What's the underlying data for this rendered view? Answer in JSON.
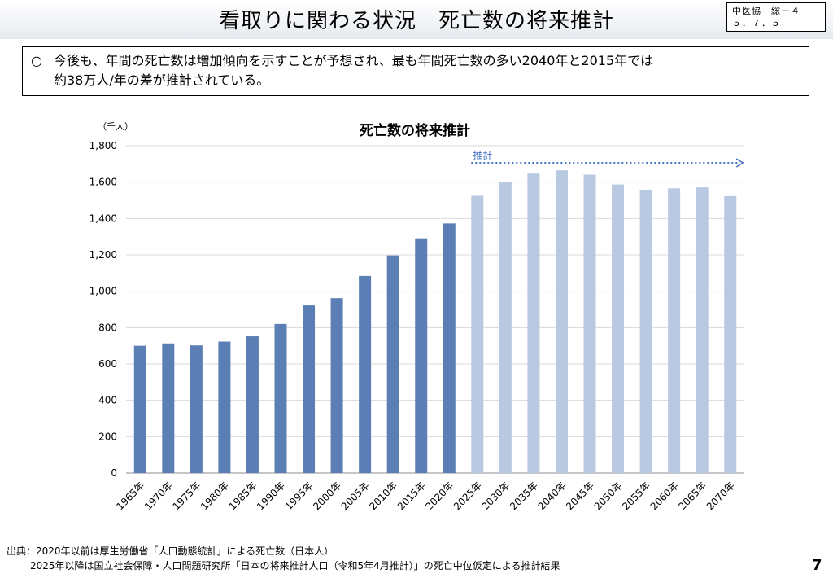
{
  "header": {
    "title": "看取りに関わる状況　死亡数の将来推計",
    "meeting_ref_line1": "中医協　総－４",
    "meeting_ref_line2": "５．７．５"
  },
  "summary": {
    "bullet": "○",
    "line1": "今後も、年間の死亡数は増加傾向を示すことが予想され、最も年間死亡数の多い2040年と2015年では",
    "line2": "約38万人/年の差が推計されている。"
  },
  "chart_data": {
    "type": "bar",
    "title": "死亡数の将来推計",
    "ylabel": "（千人）",
    "xlabel": "",
    "ylim": [
      0,
      1800
    ],
    "yticks": [
      0,
      200,
      400,
      600,
      800,
      1000,
      1200,
      1400,
      1600,
      1800
    ],
    "ytick_labels": [
      "0",
      "200",
      "400",
      "600",
      "800",
      "1,000",
      "1,200",
      "1,400",
      "1,600",
      "1,800"
    ],
    "categories": [
      "1965年",
      "1970年",
      "1975年",
      "1980年",
      "1985年",
      "1990年",
      "1995年",
      "2000年",
      "2005年",
      "2010年",
      "2015年",
      "2020年",
      "2025年",
      "2030年",
      "2035年",
      "2040年",
      "2045年",
      "2050年",
      "2055年",
      "2060年",
      "2065年",
      "2070年"
    ],
    "values": [
      700,
      713,
      702,
      723,
      752,
      820,
      922,
      962,
      1084,
      1197,
      1291,
      1373,
      1525,
      1602,
      1647,
      1665,
      1641,
      1587,
      1557,
      1566,
      1571,
      1523
    ],
    "projected_from_index": 12,
    "projection_label": "推計",
    "colors": {
      "actual": "#5b7fb5",
      "projected": "#b9c9e1",
      "arrow": "#4472c4"
    }
  },
  "footer": {
    "source_line1": "出典：2020年以前は厚生労働省「人口動態統計」による死亡数（日本人）",
    "source_line2": "2025年以降は国立社会保障・人口問題研究所「日本の将来推計人口（令和5年4月推計）」の死亡中位仮定による推計結果",
    "page_number": "7"
  }
}
